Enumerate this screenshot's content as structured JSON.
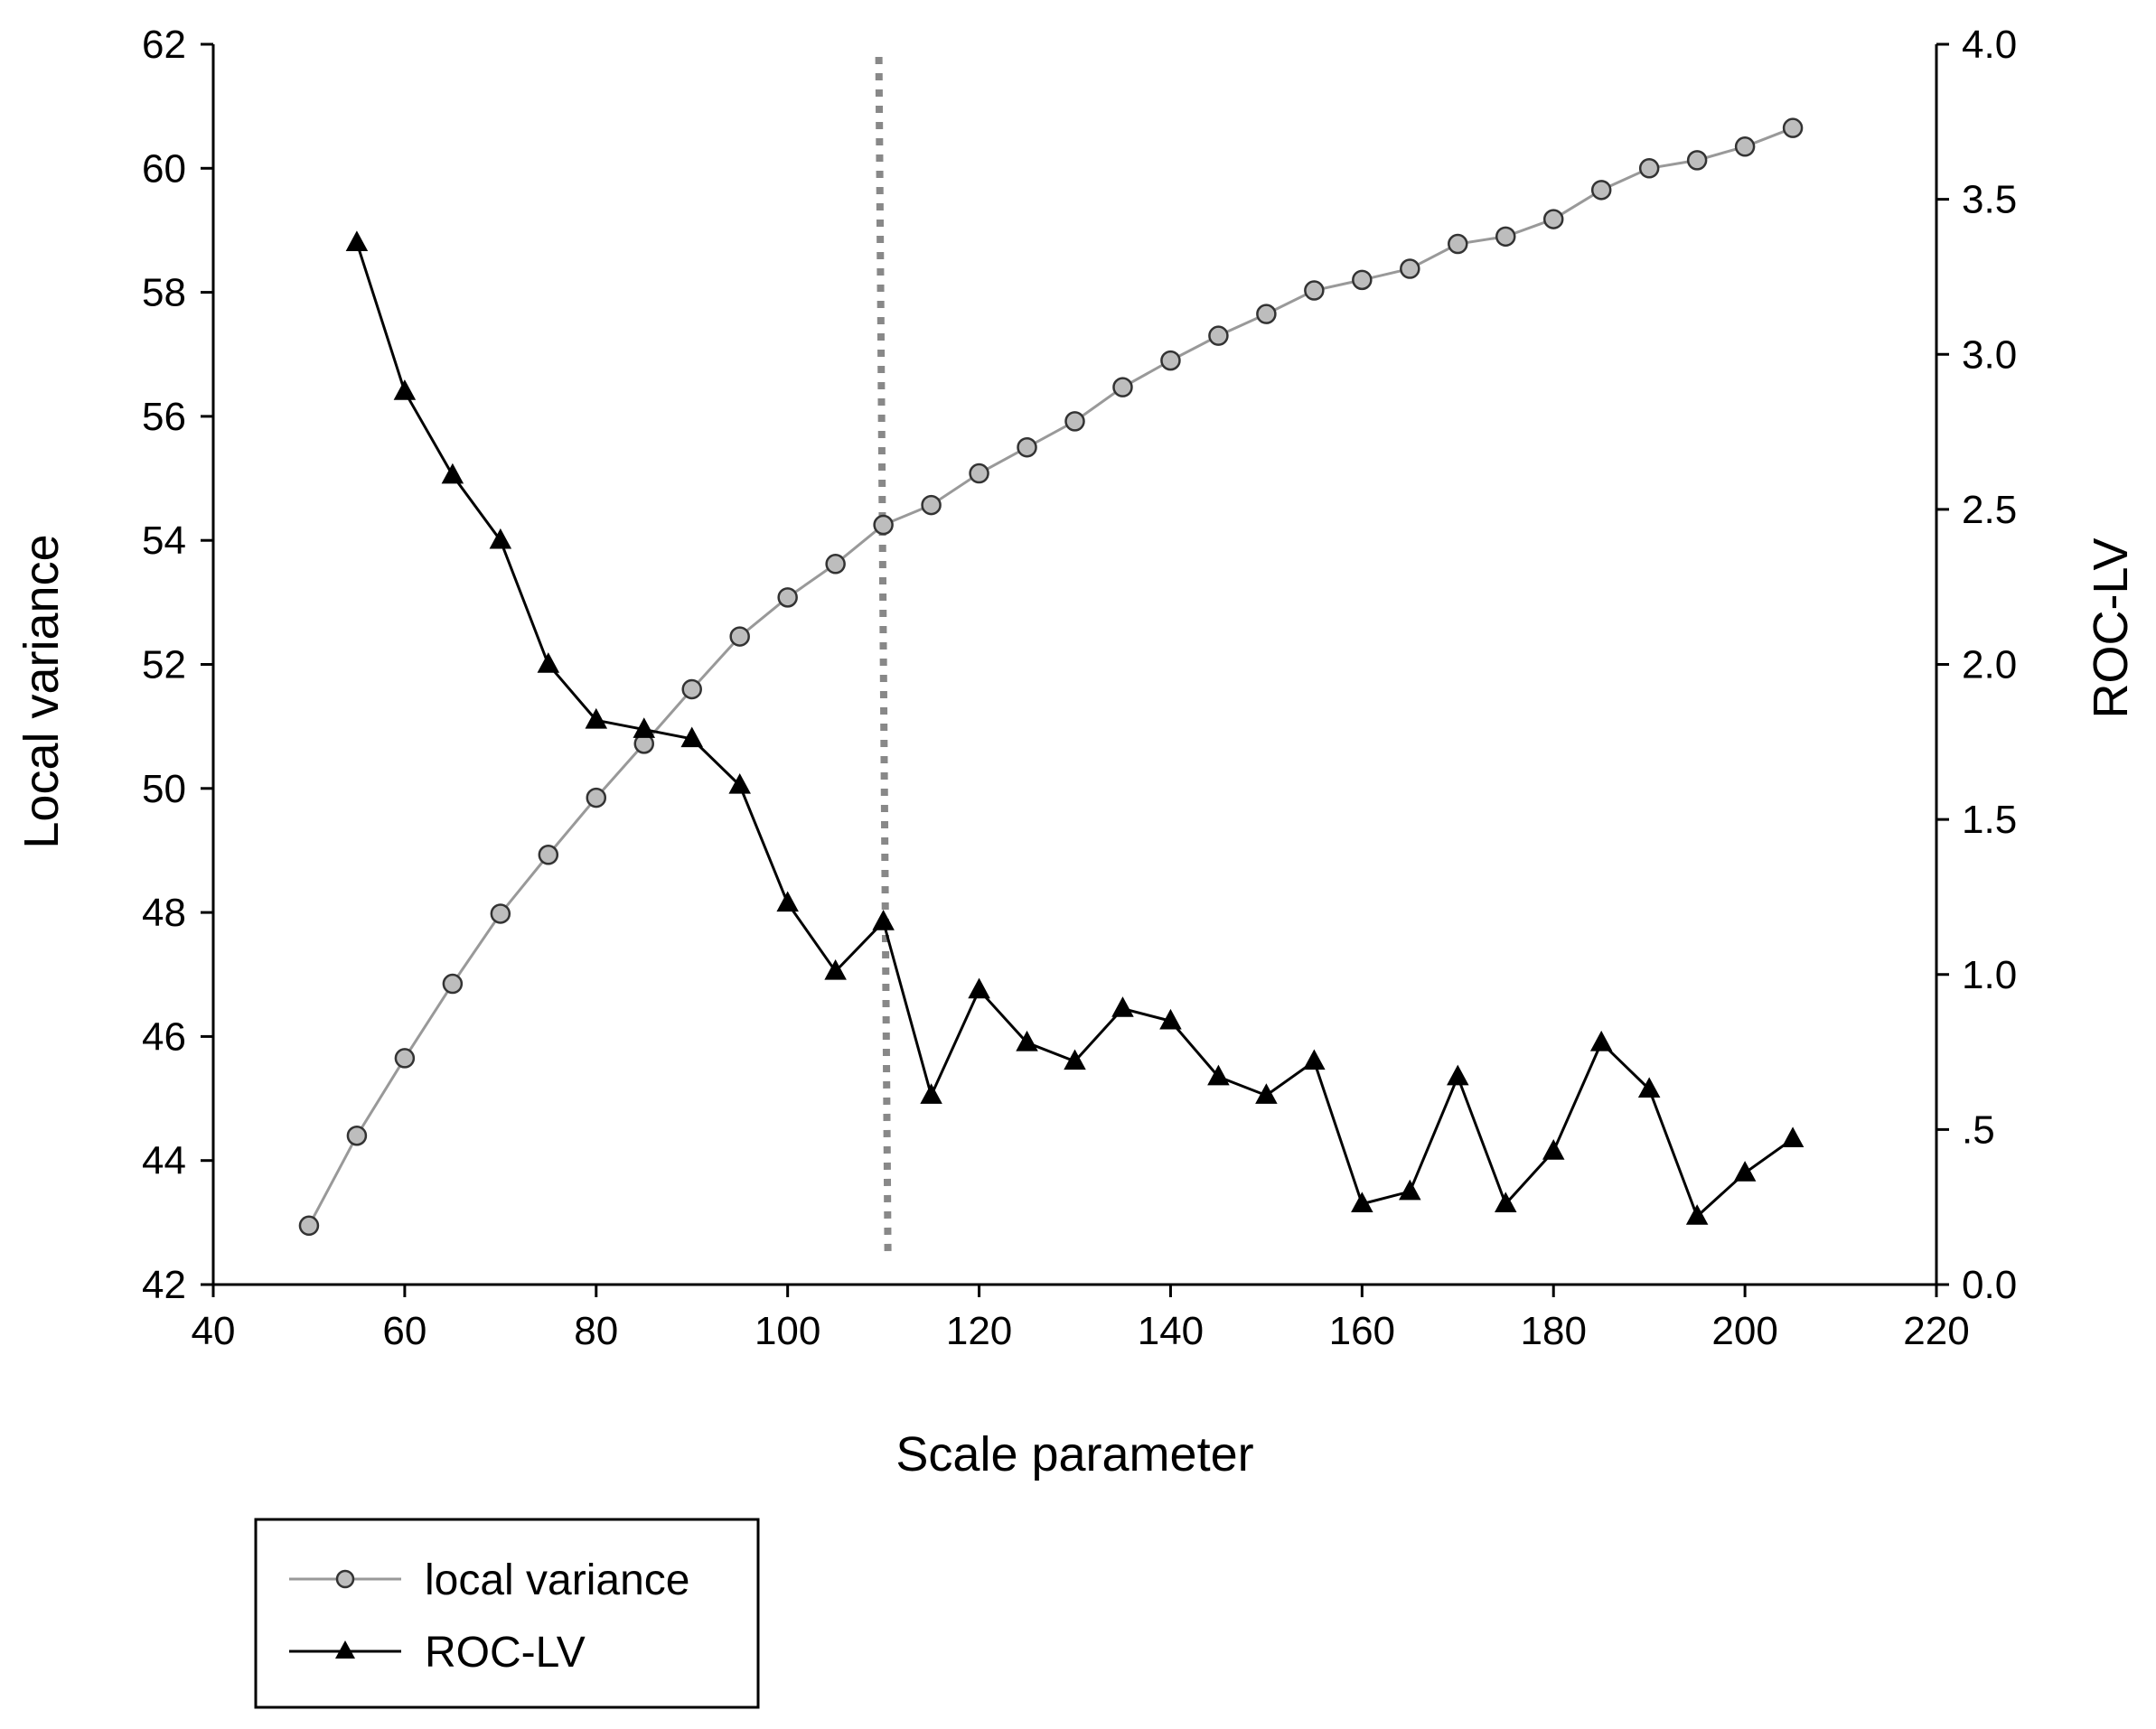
{
  "chart_data": {
    "type": "line",
    "xlabel": "Scale parameter",
    "ylabel": "Local variance",
    "y2label": "ROC-LV",
    "xlim": [
      40,
      220
    ],
    "ylim": [
      42,
      62
    ],
    "y2lim": [
      0,
      4
    ],
    "xticks": [
      40,
      60,
      80,
      100,
      120,
      140,
      160,
      180,
      200,
      220
    ],
    "xtick_labels": [
      "40",
      "60",
      "80",
      "100",
      "120",
      "140",
      "160",
      "180",
      "200",
      "220"
    ],
    "yticks": [
      42,
      44,
      46,
      48,
      50,
      52,
      54,
      56,
      58,
      60,
      62
    ],
    "ytick_labels": [
      "42",
      "44",
      "46",
      "48",
      "50",
      "52",
      "54",
      "56",
      "58",
      "60",
      "62"
    ],
    "y2ticks": [
      0,
      0.5,
      1,
      1.5,
      2,
      2.5,
      3,
      3.5,
      4
    ],
    "y2tick_labels": [
      "0.0",
      ".5",
      "1.0",
      "1.5",
      "2.0",
      "2.5",
      "3.0",
      "3.5",
      "4.0"
    ],
    "grid": false,
    "legend_position": "bottom-left, below plot",
    "vertical_marker": {
      "x": 110,
      "style": "dotted",
      "color": "#888888"
    },
    "series": [
      {
        "name": "local variance",
        "axis": "left",
        "color": "#999999",
        "marker": "circle",
        "marker_fill": "#bdbdbd",
        "x": [
          50,
          55,
          60,
          65,
          70,
          75,
          80,
          85,
          90,
          95,
          100,
          105,
          110,
          115,
          120,
          125,
          130,
          135,
          140,
          145,
          150,
          155,
          160,
          165,
          170,
          175,
          180,
          185,
          190,
          195,
          200,
          205
        ],
        "values": [
          42.95,
          44.4,
          45.65,
          46.85,
          47.98,
          48.93,
          49.85,
          50.72,
          51.6,
          52.45,
          53.08,
          53.62,
          54.25,
          54.57,
          55.08,
          55.5,
          55.92,
          56.47,
          56.9,
          57.3,
          57.65,
          58.03,
          58.2,
          58.38,
          58.78,
          58.9,
          59.18,
          59.65,
          60.0,
          60.13,
          60.35,
          60.65
        ]
      },
      {
        "name": "ROC-LV",
        "axis": "right",
        "color": "#000000",
        "marker": "triangle",
        "marker_fill": "#000000",
        "x": [
          55,
          60,
          65,
          70,
          75,
          80,
          85,
          90,
          95,
          100,
          105,
          110,
          115,
          120,
          125,
          130,
          135,
          140,
          145,
          150,
          155,
          160,
          165,
          170,
          175,
          180,
          185,
          190,
          195,
          200,
          205
        ],
        "values": [
          3.36,
          2.88,
          2.61,
          2.4,
          2.0,
          1.82,
          1.79,
          1.76,
          1.61,
          1.23,
          1.01,
          1.17,
          0.61,
          0.95,
          0.78,
          0.72,
          0.89,
          0.85,
          0.67,
          0.61,
          0.72,
          0.26,
          0.3,
          0.67,
          0.26,
          0.43,
          0.78,
          0.63,
          0.22,
          0.36,
          0.47
        ]
      }
    ]
  }
}
